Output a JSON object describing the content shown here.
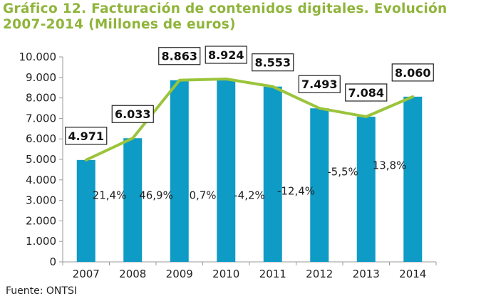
{
  "title": "Gráfico 12. Facturación de contenidos digitales. Evolución 2007-2014 (Millones de euros)",
  "source": "Fuente: ONTSI",
  "colors": {
    "bar": "#0e9bc5",
    "line": "#9bc43b",
    "title": "#8fb43a"
  },
  "chart_data": {
    "type": "bar",
    "title": "Gráfico 12. Facturación de contenidos digitales. Evolución 2007-2014 (Millones de euros)",
    "xlabel": "",
    "ylabel": "",
    "categories": [
      "2007",
      "2008",
      "2009",
      "2010",
      "2011",
      "2012",
      "2013",
      "2014"
    ],
    "values": [
      4971,
      6033,
      8863,
      8924,
      8553,
      7493,
      7084,
      8060
    ],
    "value_labels": [
      "4.971",
      "6.033",
      "8.863",
      "8.924",
      "8.553",
      "7.493",
      "7.084",
      "8.060"
    ],
    "line_values": [
      4971,
      6033,
      8863,
      8924,
      8553,
      7493,
      7084,
      8060
    ],
    "growth_labels": [
      "21,4%",
      "46,9%",
      "0,7%",
      "-4,2%",
      "-12,4%",
      "-5,5%",
      "13,8%"
    ],
    "growth_label_levels": [
      3250,
      3250,
      3250,
      3250,
      3450,
      4400,
      4700
    ],
    "yticks": [
      0,
      1000,
      2000,
      3000,
      4000,
      5000,
      6000,
      7000,
      8000,
      9000,
      10000
    ],
    "ytick_labels": [
      "0",
      "1.000",
      "2.000",
      "3.000",
      "4.000",
      "5.000",
      "6.000",
      "7.000",
      "8.000",
      "9.000",
      "10.000"
    ],
    "ylim": [
      0,
      10000
    ],
    "grid": false,
    "legend": "none"
  }
}
